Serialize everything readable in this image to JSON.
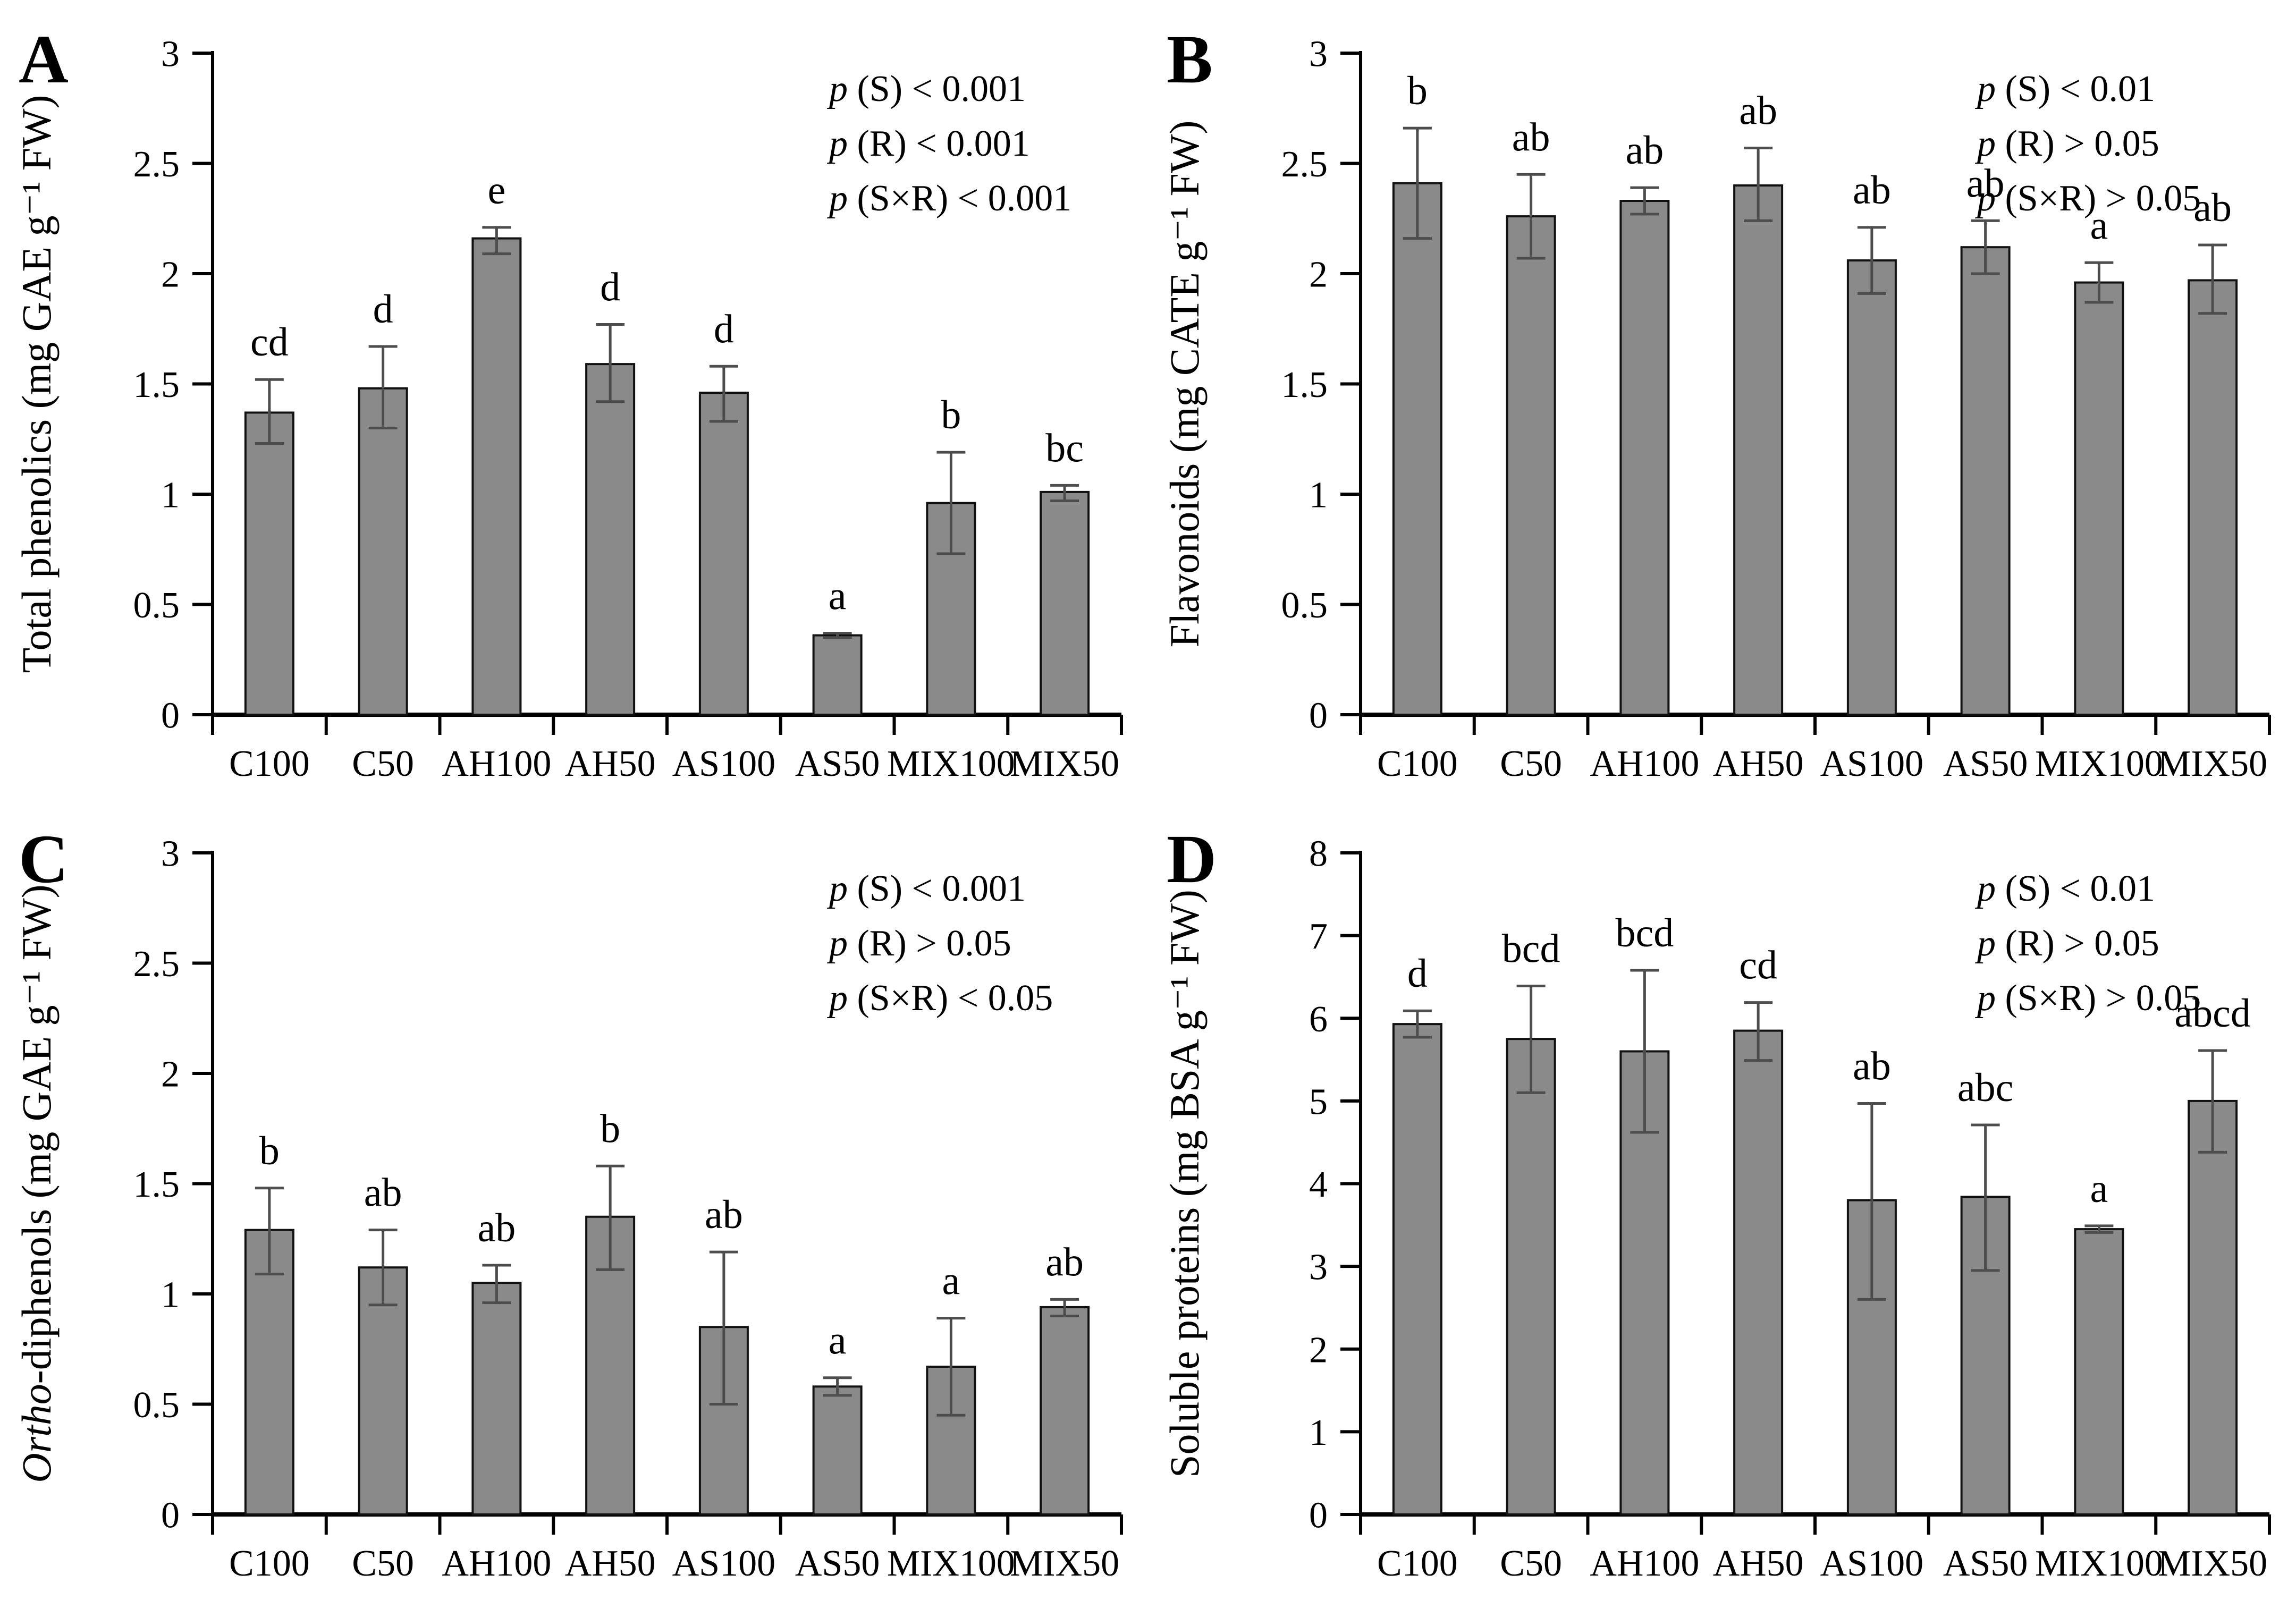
{
  "figure_title": "",
  "categories": [
    "C100",
    "C50",
    "AH100",
    "AH50",
    "AS100",
    "AS50",
    "MIX100",
    "MIX50"
  ],
  "colors": {
    "bar_fill": "#8a8a8a",
    "bar_stroke": "#111111",
    "error_bar": "#4d4d4d",
    "axis": "#000000",
    "text": "#000000",
    "background": "#ffffff"
  },
  "chart_data": [
    {
      "type": "bar",
      "panel": "A",
      "panel_label": "A",
      "title": "",
      "xlabel": "",
      "ylabel": "Total phenolics (mg GAE g⁻¹ FW)",
      "ylabel_parts": [
        {
          "text": "Total phenolics (mg GAE g⁻¹ FW)",
          "italic": false
        }
      ],
      "ylim": [
        0,
        3
      ],
      "ytick_step": 0.5,
      "ytick_labels": [
        "0",
        "0.5",
        "1",
        "1.5",
        "2",
        "2.5",
        "3"
      ],
      "grid": false,
      "legend": "none",
      "categories": [
        "C100",
        "C50",
        "AH100",
        "AH50",
        "AS100",
        "AS50",
        "MIX100",
        "MIX50"
      ],
      "values": [
        1.37,
        1.48,
        2.16,
        1.59,
        1.46,
        0.36,
        0.96,
        1.01
      ],
      "error_high": [
        0.15,
        0.19,
        0.05,
        0.18,
        0.12,
        0.01,
        0.23,
        0.03
      ],
      "error_low": [
        0.14,
        0.18,
        0.07,
        0.17,
        0.13,
        0.01,
        0.23,
        0.04
      ],
      "sig_letters": [
        "cd",
        "d",
        "e",
        "d",
        "d",
        "a",
        "b",
        "bc"
      ],
      "annotations": [
        "p (S) < 0.001",
        "p (R) < 0.001",
        "p (S×R) < 0.001"
      ]
    },
    {
      "type": "bar",
      "panel": "B",
      "panel_label": "B",
      "title": "",
      "xlabel": "",
      "ylabel": "Flavonoids (mg CATE g⁻¹ FW)",
      "ylabel_parts": [
        {
          "text": "Flavonoids (mg CATE g⁻¹ FW)",
          "italic": false
        }
      ],
      "ylim": [
        0,
        3
      ],
      "ytick_step": 0.5,
      "ytick_labels": [
        "0",
        "0.5",
        "1",
        "1.5",
        "2",
        "2.5",
        "3"
      ],
      "grid": false,
      "legend": "none",
      "categories": [
        "C100",
        "C50",
        "AH100",
        "AH50",
        "AS100",
        "AS50",
        "MIX100",
        "MIX50"
      ],
      "values": [
        2.41,
        2.26,
        2.33,
        2.4,
        2.06,
        2.12,
        1.96,
        1.97
      ],
      "error_high": [
        0.25,
        0.19,
        0.06,
        0.17,
        0.15,
        0.12,
        0.09,
        0.16
      ],
      "error_low": [
        0.25,
        0.19,
        0.06,
        0.16,
        0.15,
        0.12,
        0.09,
        0.15
      ],
      "sig_letters": [
        "b",
        "ab",
        "ab",
        "ab",
        "ab",
        "ab",
        "a",
        "ab"
      ],
      "annotations": [
        "p (S) < 0.01",
        "p (R) > 0.05",
        "p (S×R) > 0.05"
      ]
    },
    {
      "type": "bar",
      "panel": "C",
      "panel_label": "C",
      "title": "",
      "xlabel": "",
      "ylabel": "Ortho-diphenols (mg GAE g⁻¹ FW)",
      "ylabel_parts": [
        {
          "text": "Ortho",
          "italic": true
        },
        {
          "text": "-diphenols (mg GAE g⁻¹ FW)",
          "italic": false
        }
      ],
      "ylim": [
        0,
        3
      ],
      "ytick_step": 0.5,
      "ytick_labels": [
        "0",
        "0.5",
        "1",
        "1.5",
        "2",
        "2.5",
        "3"
      ],
      "grid": false,
      "legend": "none",
      "categories": [
        "C100",
        "C50",
        "AH100",
        "AH50",
        "AS100",
        "AS50",
        "MIX100",
        "MIX50"
      ],
      "values": [
        1.29,
        1.12,
        1.05,
        1.35,
        0.85,
        0.58,
        0.67,
        0.94
      ],
      "error_high": [
        0.19,
        0.17,
        0.08,
        0.23,
        0.34,
        0.04,
        0.22,
        0.035
      ],
      "error_low": [
        0.2,
        0.17,
        0.09,
        0.24,
        0.35,
        0.04,
        0.22,
        0.04
      ],
      "sig_letters": [
        "b",
        "ab",
        "ab",
        "b",
        "ab",
        "a",
        "a",
        "ab"
      ],
      "annotations": [
        "p (S) < 0.001",
        "p (R) > 0.05",
        "p (S×R) < 0.05"
      ]
    },
    {
      "type": "bar",
      "panel": "D",
      "panel_label": "D",
      "title": "",
      "xlabel": "",
      "ylabel": "Soluble proteins (mg BSA g⁻¹ FW)",
      "ylabel_parts": [
        {
          "text": "Soluble proteins (mg BSA g⁻¹ FW)",
          "italic": false
        }
      ],
      "ylim": [
        0,
        8
      ],
      "ytick_step": 1,
      "ytick_labels": [
        "0",
        "1",
        "2",
        "3",
        "4",
        "5",
        "6",
        "7",
        "8"
      ],
      "grid": false,
      "legend": "none",
      "categories": [
        "C100",
        "C50",
        "AH100",
        "AH50",
        "AS100",
        "AS50",
        "MIX100",
        "MIX50"
      ],
      "values": [
        5.93,
        5.75,
        5.6,
        5.85,
        3.8,
        3.84,
        3.45,
        5.0
      ],
      "error_high": [
        0.16,
        0.64,
        0.98,
        0.34,
        1.17,
        0.87,
        0.04,
        0.61
      ],
      "error_low": [
        0.16,
        0.65,
        0.98,
        0.36,
        1.2,
        0.89,
        0.04,
        0.62
      ],
      "sig_letters": [
        "d",
        "bcd",
        "bcd",
        "cd",
        "ab",
        "abc",
        "a",
        "abcd"
      ],
      "annotations": [
        "p (S) < 0.01",
        "p (R) > 0.05",
        "p (S×R) > 0.05"
      ]
    }
  ]
}
